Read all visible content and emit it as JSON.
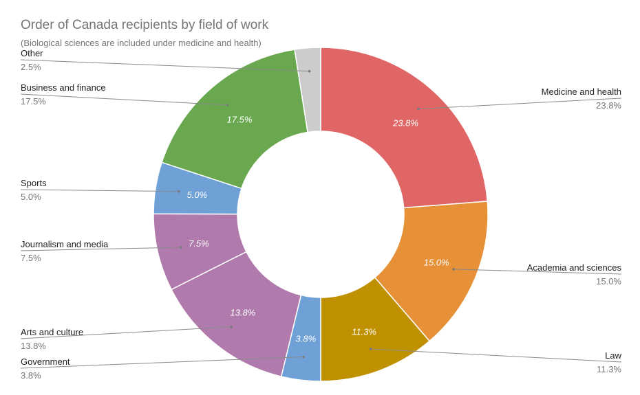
{
  "chart_data": {
    "type": "pie",
    "donut": true,
    "title": "Order of Canada recipients by field of work",
    "subtitle": "(Biological sciences are included under medicine and health)",
    "slices": [
      {
        "label": "Medicine and health",
        "value": 23.8,
        "display": "23.8%",
        "color": "#e06666"
      },
      {
        "label": "Academia and sciences",
        "value": 15.0,
        "display": "15.0%",
        "color": "#e69138"
      },
      {
        "label": "Law",
        "value": 11.3,
        "display": "11.3%",
        "color": "#bf9000"
      },
      {
        "label": "Government",
        "value": 3.8,
        "display": "3.8%",
        "color": "#6fa0d6"
      },
      {
        "label": "Arts and culture",
        "value": 13.8,
        "display": "13.8%",
        "color": "#b07aad"
      },
      {
        "label": "Journalism and media",
        "value": 7.5,
        "display": "7.5%",
        "color": "#b07aad"
      },
      {
        "label": "Sports",
        "value": 5.0,
        "display": "5.0%",
        "color": "#6fa0d6"
      },
      {
        "label": "Business and finance",
        "value": 17.5,
        "display": "17.5%",
        "color": "#6aa84f"
      },
      {
        "label": "Other",
        "value": 2.5,
        "display": "2.5%",
        "color": "#cccccc"
      }
    ],
    "legend": "labels-outside"
  }
}
